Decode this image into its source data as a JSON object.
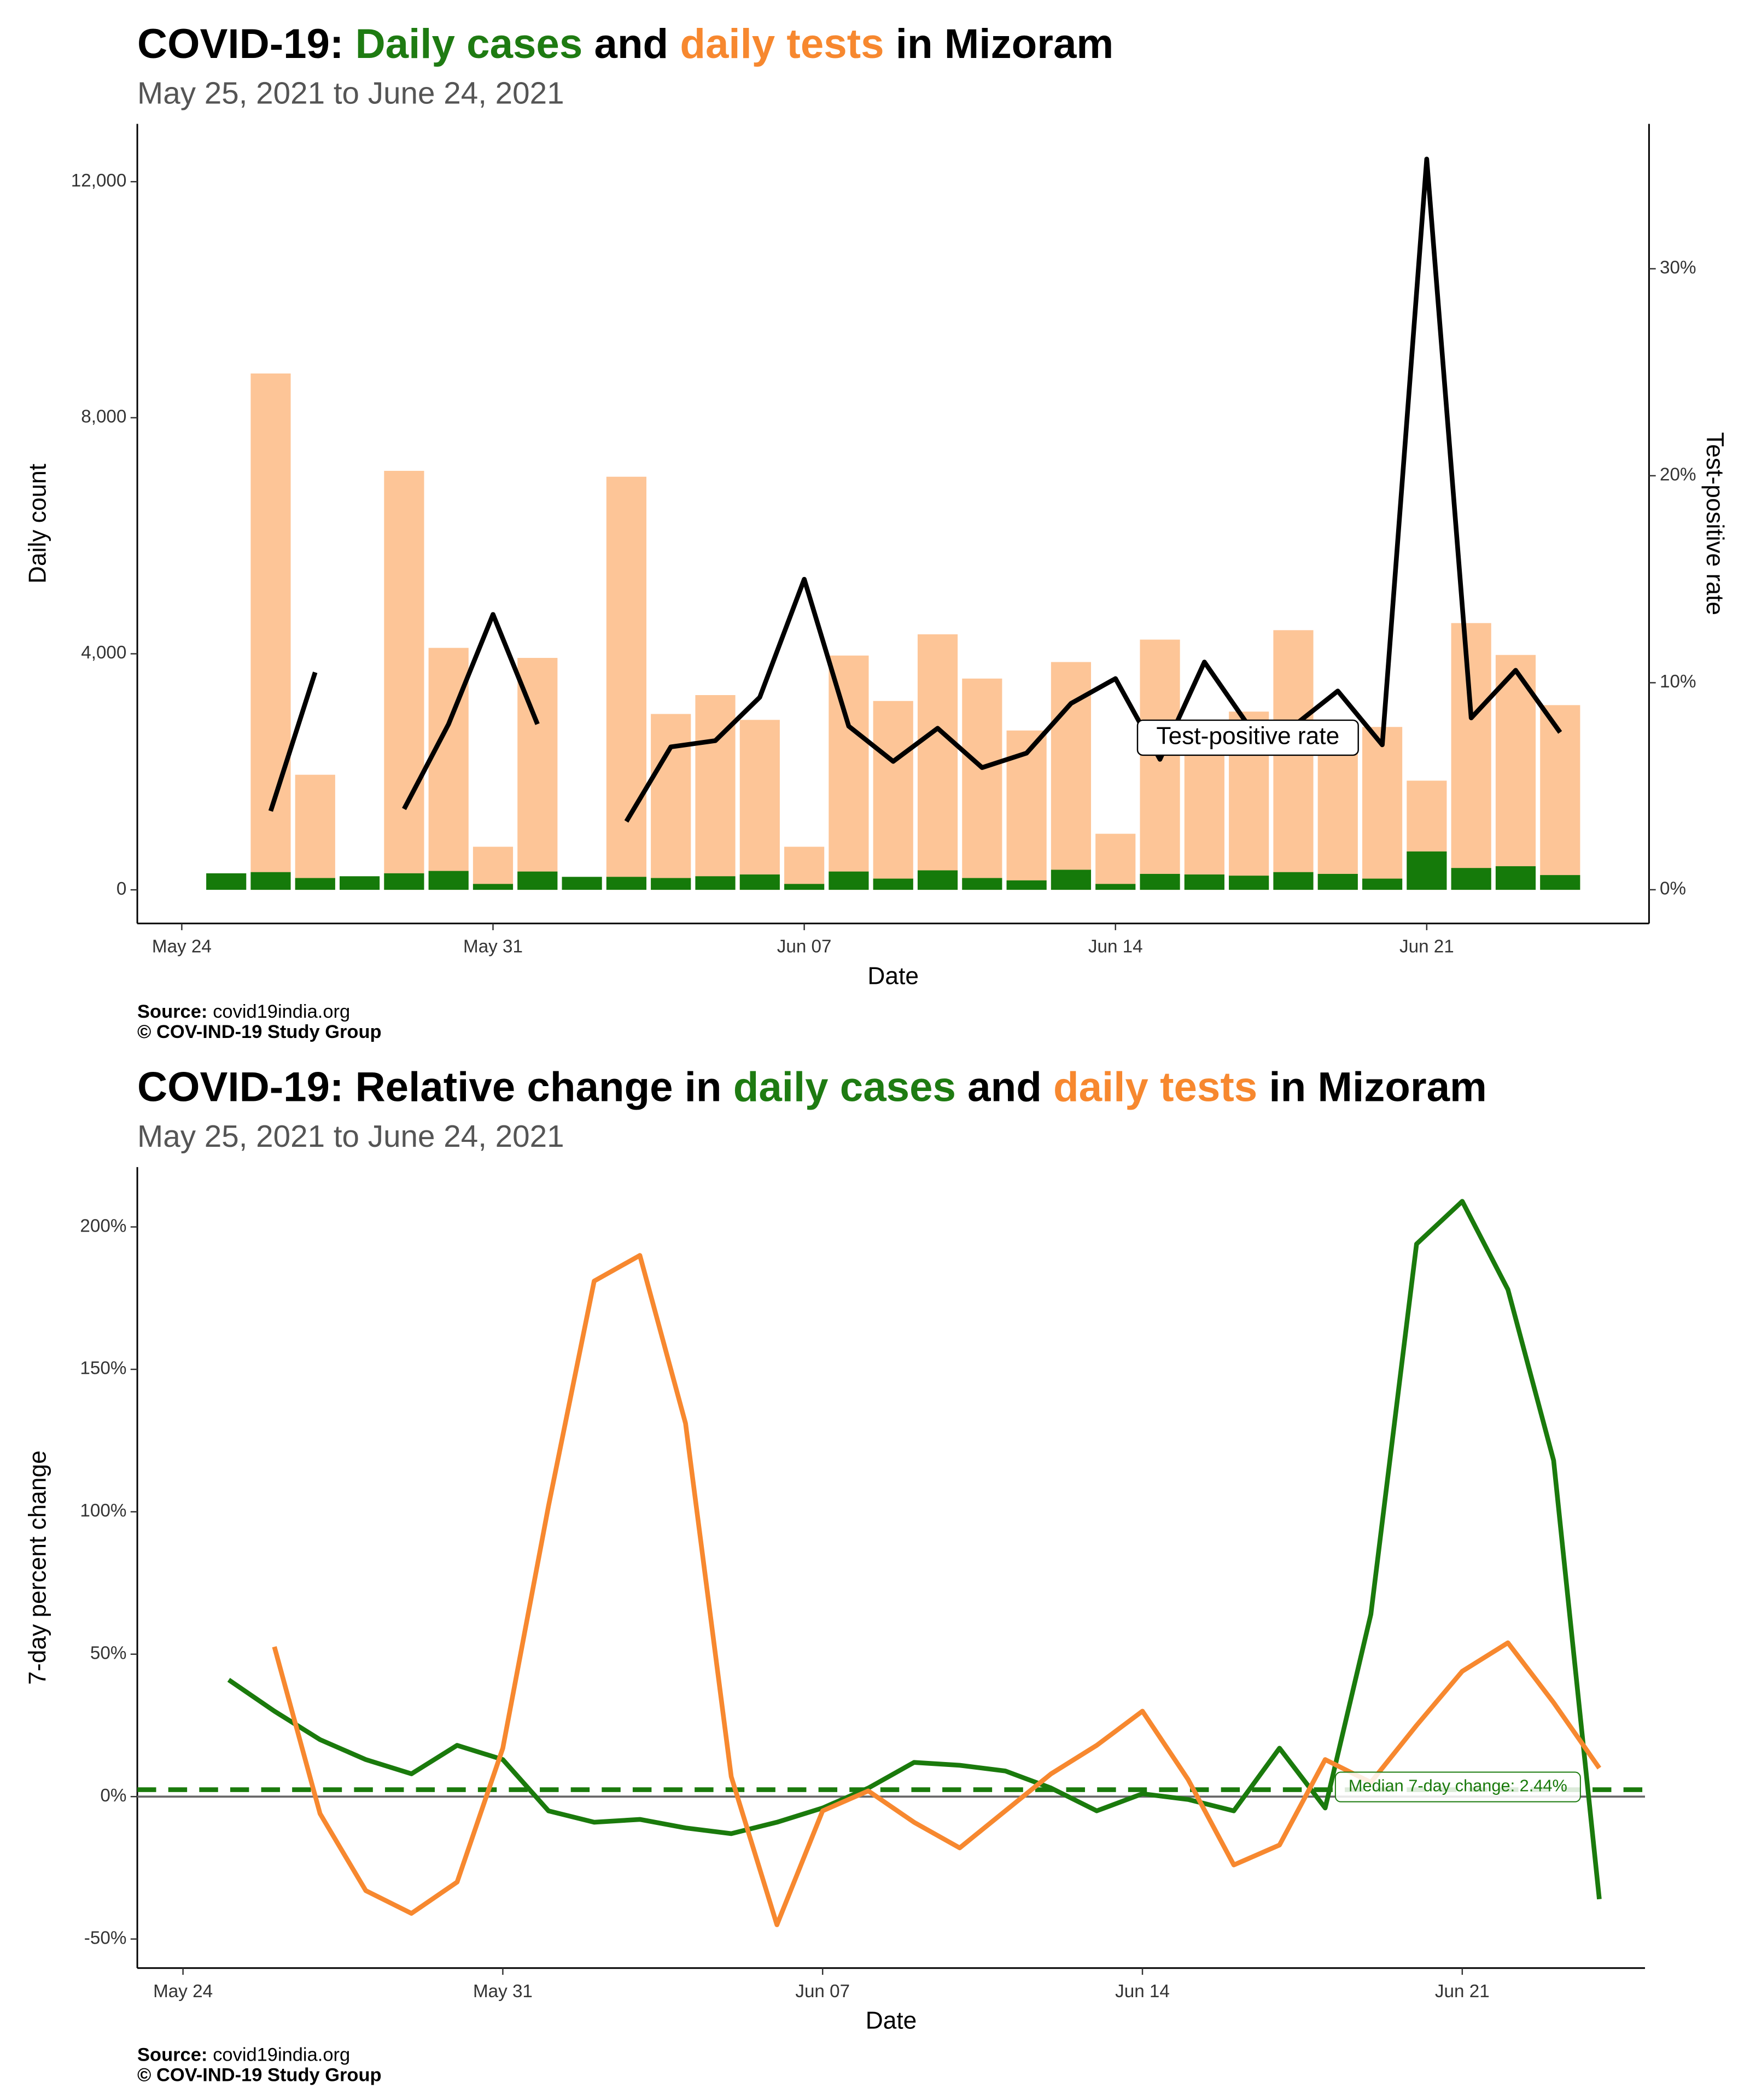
{
  "chart_data": [
    {
      "type": "bar",
      "title": [
        {
          "text": "COVID-19: ",
          "color": "#000000"
        },
        {
          "text": "Daily cases",
          "color": "#1e7b12"
        },
        {
          "text": " and ",
          "color": "#000000"
        },
        {
          "text": "daily tests",
          "color": "#f7882f"
        },
        {
          "text": " in Mizoram",
          "color": "#000000"
        }
      ],
      "subtitle": "May 25, 2021 to June 24, 2021",
      "x_label": "Date",
      "y_label": "Daily count",
      "y2_label": "Test-positive rate",
      "x": [
        "May 25",
        "May 26",
        "May 27",
        "May 28",
        "May 29",
        "May 30",
        "May 31",
        "Jun 01",
        "Jun 02",
        "Jun 03",
        "Jun 04",
        "Jun 05",
        "Jun 06",
        "Jun 07",
        "Jun 08",
        "Jun 09",
        "Jun 10",
        "Jun 11",
        "Jun 12",
        "Jun 13",
        "Jun 14",
        "Jun 15",
        "Jun 16",
        "Jun 17",
        "Jun 18",
        "Jun 19",
        "Jun 20",
        "Jun 21",
        "Jun 22",
        "Jun 23",
        "Jun 24"
      ],
      "xlim": [
        "May 23",
        "Jun 26"
      ],
      "xticks": [
        "May 24",
        "May 31",
        "Jun 07",
        "Jun 14",
        "Jun 21"
      ],
      "ylim": [
        -570,
        12980
      ],
      "yticks": [
        0,
        {
          "value": 4000,
          "label": "4,000"
        },
        {
          "value": 8000,
          "label": "8,000"
        },
        {
          "value": 12000,
          "label": "12,000"
        }
      ],
      "y2lim": [
        -1.63,
        37.0
      ],
      "y2ticks": [
        {
          "value": 0,
          "label": "0%"
        },
        {
          "value": 10,
          "label": "10%"
        },
        {
          "value": 20,
          "label": "20%"
        },
        {
          "value": 30,
          "label": "30%"
        }
      ],
      "series": [
        {
          "name": "daily tests",
          "type": "bar",
          "color": "#fdc597",
          "values": [
            null,
            8750,
            1950,
            null,
            7100,
            4100,
            730,
            3930,
            null,
            7000,
            2980,
            3300,
            2880,
            730,
            3970,
            3200,
            4330,
            3580,
            2700,
            3860,
            950,
            4240,
            2350,
            3020,
            4400,
            2800,
            2760,
            1850,
            4520,
            3980,
            3130
          ]
        },
        {
          "name": "Daily cases",
          "type": "bar",
          "color": "#157a0a",
          "values": [
            280,
            300,
            200,
            230,
            280,
            320,
            100,
            310,
            220,
            220,
            200,
            230,
            260,
            100,
            310,
            190,
            330,
            200,
            160,
            340,
            100,
            270,
            260,
            240,
            300,
            270,
            190,
            650,
            370,
            400,
            250
          ]
        },
        {
          "name": "Test-positive rate",
          "type": "line",
          "axis": "y2",
          "color": "#000000",
          "values": [
            null,
            3.8,
            10.5,
            null,
            3.9,
            8.0,
            13.3,
            8.0,
            null,
            3.3,
            6.9,
            7.2,
            9.3,
            15.0,
            7.9,
            6.2,
            7.8,
            5.9,
            6.6,
            9.0,
            10.2,
            6.3,
            11.0,
            7.9,
            7.9,
            9.6,
            7.0,
            35.3,
            8.3,
            10.6,
            7.6
          ]
        }
      ],
      "source_label": "Source:",
      "source": "covid19india.org",
      "credit": "© COV-IND-19 Study Group"
    },
    {
      "type": "line",
      "title": [
        {
          "text": "COVID-19: Relative change in ",
          "color": "#000000"
        },
        {
          "text": "daily cases",
          "color": "#1e7b12"
        },
        {
          "text": " and ",
          "color": "#000000"
        },
        {
          "text": "daily tests",
          "color": "#f7882f"
        },
        {
          "text": " in Mizoram",
          "color": "#000000"
        }
      ],
      "subtitle": "May 25, 2021 to June 24, 2021",
      "x_label": "Date",
      "y_label": "7-day percent change",
      "x": [
        "May 25",
        "May 26",
        "May 27",
        "May 28",
        "May 29",
        "May 30",
        "May 31",
        "Jun 01",
        "Jun 02",
        "Jun 03",
        "Jun 04",
        "Jun 05",
        "Jun 06",
        "Jun 07",
        "Jun 08",
        "Jun 09",
        "Jun 10",
        "Jun 11",
        "Jun 12",
        "Jun 13",
        "Jun 14",
        "Jun 15",
        "Jun 16",
        "Jun 17",
        "Jun 18",
        "Jun 19",
        "Jun 20",
        "Jun 21",
        "Jun 22",
        "Jun 23",
        "Jun 24"
      ],
      "xlim": [
        "May 23",
        "Jun 25"
      ],
      "xticks": [
        "May 24",
        "May 31",
        "Jun 07",
        "Jun 14",
        "Jun 21"
      ],
      "ylim": [
        -60.2,
        221
      ],
      "yticks": [
        {
          "value": -50,
          "label": "-50%"
        },
        {
          "value": 0,
          "label": "0%"
        },
        {
          "value": 50,
          "label": "50%"
        },
        {
          "value": 100,
          "label": "100%"
        },
        {
          "value": 150,
          "label": "150%"
        },
        {
          "value": 200,
          "label": "200%"
        }
      ],
      "series": [
        {
          "name": "daily cases",
          "color": "#1a7a0c",
          "values": [
            41,
            30,
            20,
            13,
            8,
            18,
            13,
            -5,
            -9,
            -8,
            -11,
            -13,
            -9,
            -4,
            3,
            12,
            11,
            9,
            3,
            -5,
            1,
            -1,
            -5,
            17,
            -4,
            64,
            194,
            209,
            178,
            118,
            -36
          ]
        },
        {
          "name": "daily tests",
          "color": "#f7882f",
          "values": [
            null,
            52.6,
            -6,
            -33,
            -41,
            -30,
            17,
            102,
            181,
            190,
            131,
            7,
            -45,
            -5,
            2,
            -9,
            -18,
            -5,
            8,
            18,
            30,
            6,
            -24,
            -17,
            13,
            5,
            25,
            44,
            54,
            33,
            10
          ]
        }
      ],
      "hline": {
        "value": 2.44,
        "label": "Median 7-day change: 2.44%",
        "color": "#1a7a0c"
      },
      "source_label": "Source:",
      "source": "covid19india.org",
      "credit": "© COV-IND-19 Study Group"
    }
  ]
}
